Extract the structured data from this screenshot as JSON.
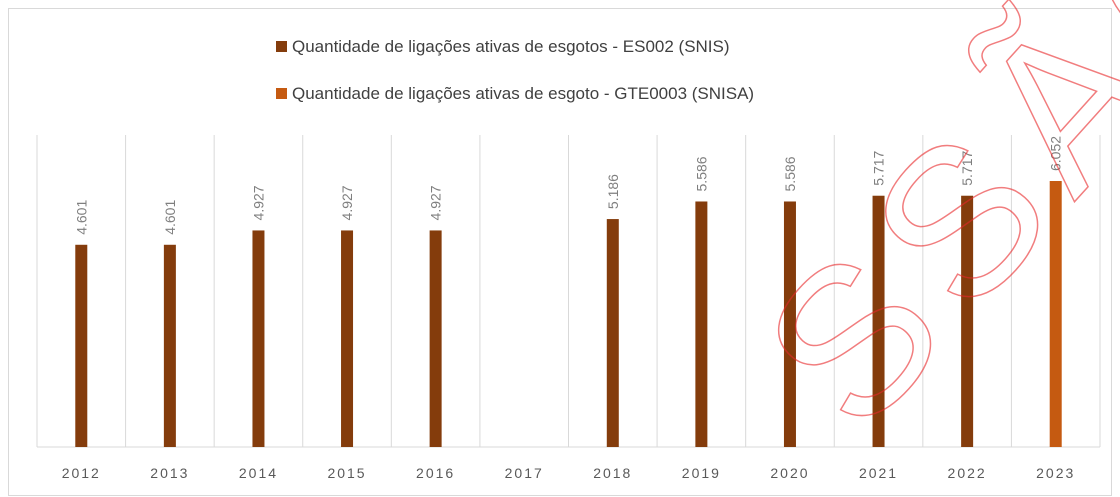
{
  "chart_data": {
    "type": "bar",
    "categories": [
      "2012",
      "2013",
      "2014",
      "2015",
      "2016",
      "2017",
      "2018",
      "2019",
      "2020",
      "2021",
      "2022",
      "2023"
    ],
    "series": [
      {
        "name": "Quantidade de ligações ativas de esgotos - ES002 (SNIS)",
        "color": "#843c0c",
        "values": [
          4601,
          4601,
          4927,
          4927,
          4927,
          null,
          5186,
          5586,
          5586,
          5717,
          5717,
          null
        ],
        "value_labels": [
          "4.601",
          "4.601",
          "4.927",
          "4.927",
          "4.927",
          null,
          "5.186",
          "5.586",
          "5.586",
          "5.717",
          "5.717",
          null
        ]
      },
      {
        "name": "Quantidade de ligações ativas de esgoto - GTE0003  (SNISA)",
        "color": "#c55a11",
        "values": [
          null,
          null,
          null,
          null,
          null,
          null,
          null,
          null,
          null,
          null,
          null,
          6052
        ],
        "value_labels": [
          null,
          null,
          null,
          null,
          null,
          null,
          null,
          null,
          null,
          null,
          null,
          "6.052"
        ]
      }
    ],
    "grid": true,
    "legend": "top",
    "watermark": "SSÃO"
  }
}
